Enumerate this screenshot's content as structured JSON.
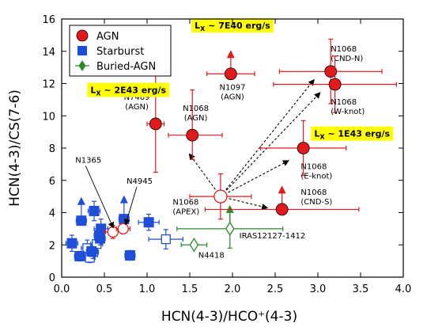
{
  "chart_data": {
    "type": "scatter",
    "xlabel": "HCN(4-3)/HCO⁺(4-3)",
    "ylabel": "HCN(4-3)/CS(7-6)",
    "xlim": [
      0.0,
      4.0
    ],
    "ylim": [
      0,
      16
    ],
    "xticks": [
      "0.0",
      "0.5",
      "1.0",
      "1.5",
      "2.0",
      "2.5",
      "3.0",
      "3.5",
      "4.0"
    ],
    "yticks": [
      "0",
      "2",
      "4",
      "6",
      "8",
      "10",
      "12",
      "14",
      "16"
    ],
    "grid": false,
    "legend_placement": "top-left",
    "colors": {
      "agn": "#e31a1c",
      "starburst": "#1f4fd8",
      "buried": "#2a8a2a",
      "arrow": "#000000",
      "highlight": "#ffff00"
    },
    "legend": [
      {
        "label": "AGN",
        "marker": "circle",
        "color": "#e31a1c"
      },
      {
        "label": "Starburst",
        "marker": "square",
        "color": "#1f4fd8"
      },
      {
        "label": "Buried-AGN",
        "marker": "diamond",
        "color": "#2a8a2a"
      }
    ],
    "highlight_labels": [
      {
        "text": "L",
        "sub": "X",
        "rest": " ~ 7E40 erg/s",
        "x": 2.0,
        "y": 15.6
      },
      {
        "text": "L",
        "sub": "X",
        "rest": " ~ 2E43 erg/s",
        "x": 0.78,
        "y": 11.6
      },
      {
        "text": "L",
        "sub": "X",
        "rest": " ~ 1E43 erg/s",
        "x": 3.4,
        "y": 8.9
      }
    ],
    "agn": [
      {
        "x": 1.1,
        "y": 9.5,
        "xerr": [
          0.1,
          0.1
        ],
        "yerr": [
          3.0,
          3.0
        ],
        "label": [
          "N7469",
          "(AGN)"
        ],
        "lx": 0.88,
        "ly": 11.0,
        "anchor": "middle"
      },
      {
        "x": 1.53,
        "y": 8.8,
        "xerr": [
          0.28,
          0.35
        ],
        "yerr": [
          1.5,
          2.8
        ],
        "label": [
          "N1068",
          "(AGN)"
        ],
        "lx": 1.57,
        "ly": 10.3,
        "anchor": "middle"
      },
      {
        "x": 1.98,
        "y": 12.6,
        "xerr": [
          0.28,
          0.28
        ],
        "yerr": [
          0,
          0
        ],
        "uplim": true,
        "label": [
          "N1097",
          "(AGN)"
        ],
        "lx": 2.0,
        "ly": 11.6,
        "anchor": "middle"
      },
      {
        "x": 3.15,
        "y": 12.75,
        "xerr": [
          0.6,
          0.6
        ],
        "yerr": [
          2.0,
          2.0
        ],
        "label": [
          "N1068",
          "(CND-N)"
        ],
        "lx": 3.15,
        "ly": 14.0,
        "anchor": "start"
      },
      {
        "x": 3.2,
        "y": 11.95,
        "xerr": [
          0.72,
          0.72
        ],
        "yerr": [
          1.75,
          1.75
        ],
        "label": [
          "N1068",
          "(W-knot)"
        ],
        "lx": 3.15,
        "ly": 10.7,
        "anchor": "start"
      },
      {
        "x": 2.83,
        "y": 8.0,
        "xerr": [
          0.5,
          0.5
        ],
        "yerr": [
          1.7,
          1.7
        ],
        "label": [
          "N1068",
          "(E-knot)"
        ],
        "lx": 2.8,
        "ly": 6.7,
        "anchor": "start"
      },
      {
        "x": 2.58,
        "y": 4.2,
        "xerr": [
          0.9,
          0.9
        ],
        "yerr": [
          0,
          0
        ],
        "uplim": true,
        "label": [
          "N1068",
          "(CND-S)"
        ],
        "lx": 2.8,
        "ly": 5.1,
        "anchor": "start"
      }
    ],
    "agn_open": [
      {
        "x": 1.86,
        "y": 5.0,
        "xerr": [
          0.36,
          0.36
        ],
        "yerr": [
          1.4,
          1.4
        ],
        "label": [
          "N1068",
          "(APEX)"
        ],
        "lx": 1.3,
        "ly": 4.5,
        "anchor": "start"
      },
      {
        "x": 0.6,
        "y": 2.8,
        "xerr": [
          0.1,
          0.1
        ],
        "yerr": [
          0.4,
          0.4
        ]
      },
      {
        "x": 0.72,
        "y": 3.0,
        "xerr": [
          0.08,
          0.08
        ],
        "yerr": [
          0.3,
          0.3
        ]
      }
    ],
    "agn_text_labels": [
      {
        "text": "N1365",
        "x": 0.16,
        "y": 7.1
      },
      {
        "text": "N4945",
        "x": 0.76,
        "y": 5.8
      }
    ],
    "starburst_filled": [
      {
        "x": 0.12,
        "y": 2.1,
        "xerr": [
          0.07,
          0.07
        ],
        "yerr": [
          0.5,
          0.5
        ]
      },
      {
        "x": 0.21,
        "y": 1.3,
        "xerr": [
          0.06,
          0.06
        ],
        "yerr": [
          0.3,
          0.3
        ]
      },
      {
        "x": 0.23,
        "y": 3.5,
        "xerr": [
          0.06,
          0.06
        ],
        "yerr": [
          0,
          0
        ],
        "uplim": true
      },
      {
        "x": 0.35,
        "y": 1.6,
        "xerr": [
          0.06,
          0.06
        ],
        "yerr": [
          0.3,
          0.3
        ]
      },
      {
        "x": 0.38,
        "y": 4.1,
        "xerr": [
          0.07,
          0.07
        ],
        "yerr": [
          0.6,
          0.6
        ]
      },
      {
        "x": 0.46,
        "y": 3.0,
        "xerr": [
          0.08,
          0.08
        ],
        "yerr": [
          0.6,
          0.6
        ]
      },
      {
        "x": 0.45,
        "y": 2.4,
        "xerr": [
          0.06,
          0.06
        ],
        "yerr": [
          0.4,
          0.4
        ]
      },
      {
        "x": 0.44,
        "y": 2.6,
        "xerr": [
          0.06,
          0.06
        ],
        "yerr": [
          0.3,
          0.3
        ]
      },
      {
        "x": 0.73,
        "y": 3.6,
        "xerr": [
          0.06,
          0.06
        ],
        "yerr": [
          0,
          0
        ],
        "uplim": true
      },
      {
        "x": 0.8,
        "y": 1.35,
        "xerr": [
          0.06,
          0.06
        ],
        "yerr": [
          0.3,
          0.3
        ]
      },
      {
        "x": 1.02,
        "y": 3.4,
        "xerr": [
          0.12,
          0.12
        ],
        "yerr": [
          0.5,
          0.5
        ]
      }
    ],
    "starburst_open": [
      {
        "x": 0.3,
        "y": 1.8,
        "xerr": [
          0.07,
          0.07
        ],
        "yerr": [
          0.5,
          0.5
        ]
      },
      {
        "x": 0.33,
        "y": 1.2,
        "xerr": [
          0.06,
          0.06
        ],
        "yerr": [
          0.3,
          0.3
        ]
      },
      {
        "x": 0.37,
        "y": 1.55,
        "xerr": [
          0.06,
          0.06
        ],
        "yerr": [
          0.4,
          0.4
        ]
      },
      {
        "x": 0.41,
        "y": 2.05,
        "xerr": [
          0.07,
          0.07
        ],
        "yerr": [
          0.5,
          0.5
        ]
      },
      {
        "x": 1.22,
        "y": 2.35,
        "xerr": [
          0.2,
          0.2
        ],
        "yerr": [
          0.6,
          0.6
        ]
      }
    ],
    "buried": [
      {
        "x": 1.97,
        "y": 3.0,
        "xerr": [
          0.62,
          0.62
        ],
        "yerr": [
          1.2,
          1.2
        ],
        "uplim": true,
        "label": "IRAS12127-1412",
        "lx": 2.08,
        "ly": 2.4
      },
      {
        "x": 1.55,
        "y": 2.0,
        "xerr": [
          0.15,
          0.15
        ],
        "yerr": [
          0,
          0
        ],
        "label": "N4418",
        "lx": 1.6,
        "ly": 1.2
      }
    ],
    "arrows": [
      {
        "from": [
          1.86,
          5.0
        ],
        "to": [
          1.5,
          7.6
        ]
      },
      {
        "from": [
          1.86,
          5.0
        ],
        "to": [
          2.95,
          12.2
        ]
      },
      {
        "from": [
          1.86,
          5.0
        ],
        "to": [
          3.02,
          11.4
        ]
      },
      {
        "from": [
          1.86,
          5.0
        ],
        "to": [
          2.65,
          7.2
        ]
      },
      {
        "from": [
          1.86,
          5.0
        ],
        "to": [
          2.4,
          4.3
        ]
      }
    ]
  }
}
